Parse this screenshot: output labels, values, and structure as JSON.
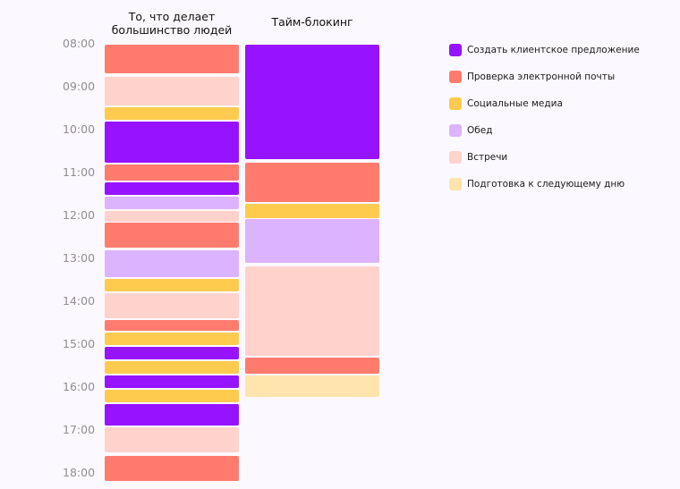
{
  "titles": {
    "left": "То, что делает большинство людей",
    "right": "Тайм-блокинг"
  },
  "time_axis": {
    "start_hour": 8,
    "labels": [
      "08:00",
      "09:00",
      "10:00",
      "11:00",
      "12:00",
      "13:00",
      "14:00",
      "15:00",
      "16:00",
      "17:00",
      "18:00"
    ]
  },
  "legend": [
    {
      "key": "proposal",
      "label": "Создать клиентское предложение",
      "color": "#9713ff"
    },
    {
      "key": "email",
      "label": "Проверка электронной почты",
      "color": "#ff7b6e"
    },
    {
      "key": "social",
      "label": "Социальные медиа",
      "color": "#ffcb4f"
    },
    {
      "key": "lunch",
      "label": "Обед",
      "color": "#dcb3ff"
    },
    {
      "key": "meetings",
      "label": "Встречи",
      "color": "#ffd2cc"
    },
    {
      "key": "prep",
      "label": "Подготовка к следующему дню",
      "color": "#ffe4ad"
    }
  ],
  "columns": {
    "left": [
      {
        "start": "08:00",
        "end": "08:40",
        "category": "email"
      },
      {
        "start": "08:45",
        "end": "09:25",
        "category": "meetings"
      },
      {
        "start": "09:27",
        "end": "09:45",
        "category": "social"
      },
      {
        "start": "09:47",
        "end": "10:45",
        "category": "proposal"
      },
      {
        "start": "10:48",
        "end": "11:10",
        "category": "email"
      },
      {
        "start": "11:12",
        "end": "11:30",
        "category": "proposal"
      },
      {
        "start": "11:32",
        "end": "11:50",
        "category": "lunch"
      },
      {
        "start": "11:52",
        "end": "12:07",
        "category": "meetings"
      },
      {
        "start": "12:09",
        "end": "12:44",
        "category": "email"
      },
      {
        "start": "12:47",
        "end": "13:25",
        "category": "lunch"
      },
      {
        "start": "13:28",
        "end": "13:45",
        "category": "social"
      },
      {
        "start": "13:48",
        "end": "14:22",
        "category": "meetings"
      },
      {
        "start": "14:25",
        "end": "14:40",
        "category": "email"
      },
      {
        "start": "14:43",
        "end": "15:00",
        "category": "social"
      },
      {
        "start": "15:02",
        "end": "15:20",
        "category": "proposal"
      },
      {
        "start": "15:22",
        "end": "15:40",
        "category": "social"
      },
      {
        "start": "15:42",
        "end": "16:00",
        "category": "proposal"
      },
      {
        "start": "16:02",
        "end": "16:20",
        "category": "social"
      },
      {
        "start": "16:22",
        "end": "16:52",
        "category": "proposal"
      },
      {
        "start": "16:55",
        "end": "17:30",
        "category": "meetings"
      },
      {
        "start": "17:35",
        "end": "18:10",
        "category": "email"
      }
    ],
    "right": [
      {
        "start": "08:00",
        "end": "10:40",
        "category": "proposal"
      },
      {
        "start": "10:45",
        "end": "11:40",
        "category": "email"
      },
      {
        "start": "11:42",
        "end": "12:02",
        "category": "social"
      },
      {
        "start": "12:04",
        "end": "13:05",
        "category": "lunch"
      },
      {
        "start": "13:10",
        "end": "15:15",
        "category": "meetings"
      },
      {
        "start": "15:18",
        "end": "15:40",
        "category": "email"
      },
      {
        "start": "15:43",
        "end": "16:12",
        "category": "prep"
      }
    ]
  }
}
